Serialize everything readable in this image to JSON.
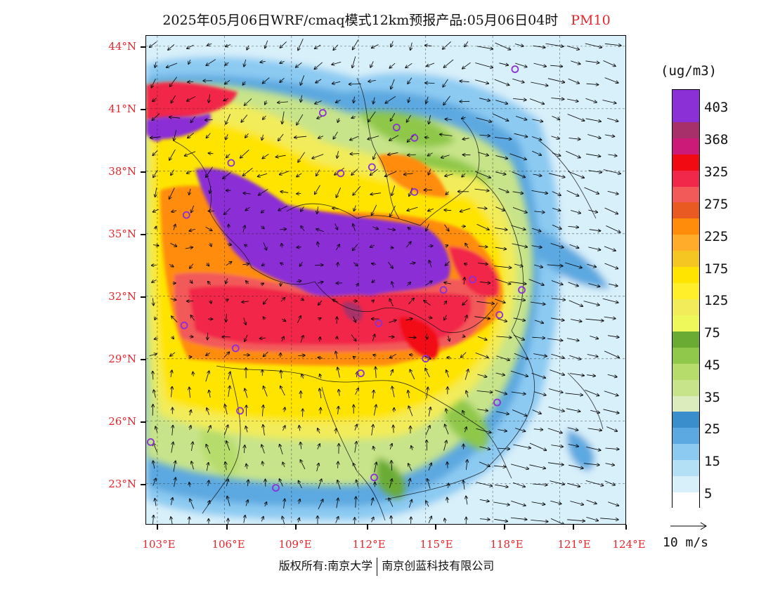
{
  "title": {
    "main": "2025年05月06日WRF/cmaq模式12km预报产品:05月06日04时",
    "parameter": "PM10"
  },
  "axes": {
    "latitude_labels": [
      "44°N",
      "41°N",
      "38°N",
      "35°N",
      "32°N",
      "29°N",
      "26°N",
      "23°N"
    ],
    "longitude_labels": [
      "103°E",
      "106°E",
      "109°E",
      "112°E",
      "115°E",
      "118°E",
      "121°E",
      "124°E"
    ],
    "lat_range": [
      21.0,
      44.5
    ],
    "lon_range": [
      102.5,
      124.0
    ]
  },
  "legend": {
    "unit": "(ug/m3)",
    "labels": [
      "403",
      "368",
      "325",
      "275",
      "225",
      "175",
      "125",
      "75",
      "45",
      "35",
      "25",
      "15",
      "5"
    ],
    "colors": [
      "#8b2fd6",
      "#8b2fd6",
      "#a8306a",
      "#cc1a78",
      "#f20a12",
      "#f2284a",
      "#f25a5a",
      "#e85a22",
      "#ff8c0a",
      "#ffac2a",
      "#f5c521",
      "#ffe400",
      "#ffef2a",
      "#f2ec5a",
      "#eef85a",
      "#6aab34",
      "#8fc84a",
      "#b6dc6c",
      "#c8e48a",
      "#dcecbc",
      "#3a8ecc",
      "#5ca8e0",
      "#8ccaf2",
      "#b4e0f6",
      "#d8f0fa",
      "#ffffff"
    ]
  },
  "wind_scale": {
    "label": "10 m/s"
  },
  "map": {
    "stations": [
      {
        "lon": 119.0,
        "lat": 42.9
      },
      {
        "lon": 110.4,
        "lat": 40.8
      },
      {
        "lon": 113.7,
        "lat": 40.1
      },
      {
        "lon": 114.5,
        "lat": 39.6
      },
      {
        "lon": 106.3,
        "lat": 38.4
      },
      {
        "lon": 111.2,
        "lat": 37.9
      },
      {
        "lon": 112.6,
        "lat": 38.2
      },
      {
        "lon": 114.5,
        "lat": 37.0
      },
      {
        "lon": 104.3,
        "lat": 35.9
      },
      {
        "lon": 108.7,
        "lat": 34.2
      },
      {
        "lon": 112.2,
        "lat": 34.9
      },
      {
        "lon": 115.8,
        "lat": 32.3
      },
      {
        "lon": 117.1,
        "lat": 32.8
      },
      {
        "lon": 119.3,
        "lat": 32.3
      },
      {
        "lon": 104.2,
        "lat": 30.6
      },
      {
        "lon": 106.5,
        "lat": 29.5
      },
      {
        "lon": 112.9,
        "lat": 30.7
      },
      {
        "lon": 115.0,
        "lat": 29.0
      },
      {
        "lon": 118.3,
        "lat": 31.1
      },
      {
        "lon": 112.1,
        "lat": 28.3
      },
      {
        "lon": 106.7,
        "lat": 26.5
      },
      {
        "lon": 118.2,
        "lat": 26.9
      },
      {
        "lon": 102.7,
        "lat": 25.0
      },
      {
        "lon": 108.3,
        "lat": 22.8
      },
      {
        "lon": 112.7,
        "lat": 23.3
      }
    ]
  },
  "footer": {
    "left": "版权所有:南京大学",
    "right": "南京创蓝科技有限公司"
  }
}
